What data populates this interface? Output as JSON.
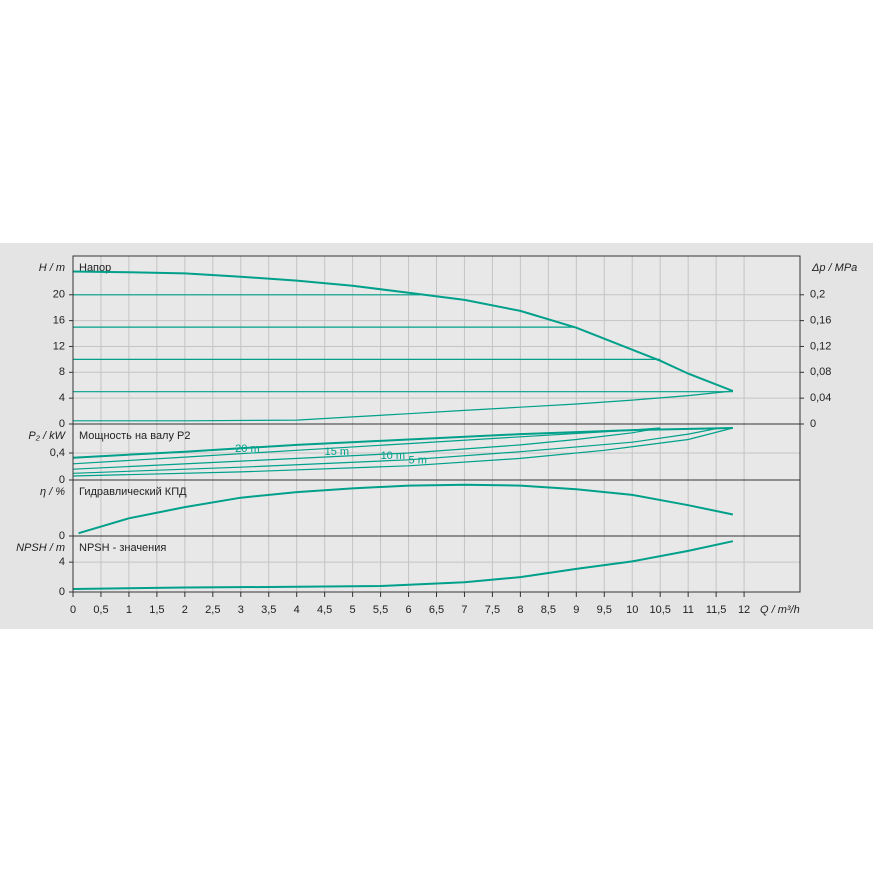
{
  "chart_data": [
    {
      "type": "line",
      "title": "Напор",
      "y_label": "H / m",
      "y2_label": "Δp / MPa",
      "ylim": [
        0,
        26
      ],
      "yticks": [
        0,
        4,
        8,
        12,
        16,
        20
      ],
      "y2lim": [
        0,
        0.26
      ],
      "y2ticks": [
        0,
        {
          "value": 0.04,
          "label": "0,04"
        },
        {
          "value": 0.08,
          "label": "0,08"
        },
        {
          "value": 0.12,
          "label": "0,12"
        },
        {
          "value": 0.16,
          "label": "0,16"
        },
        {
          "value": 0.2,
          "label": "0,2"
        }
      ],
      "grid": true,
      "series": [
        {
          "color": "#00a08a",
          "x": [
            0,
            1,
            2,
            3,
            4,
            5,
            6,
            7,
            8,
            9,
            10,
            10.5,
            11,
            11.8
          ],
          "values": [
            23.6,
            23.5,
            23.3,
            22.8,
            22.2,
            21.4,
            20.3,
            19.2,
            17.5,
            14.9,
            11.5,
            9.8,
            7.8,
            5.1
          ]
        },
        {
          "color": "#00a08a",
          "x": [
            0,
            6.2
          ],
          "values": [
            20,
            20
          ]
        },
        {
          "color": "#00a08a",
          "x": [
            0,
            9
          ],
          "values": [
            15,
            15
          ]
        },
        {
          "color": "#00a08a",
          "x": [
            0,
            10.5
          ],
          "values": [
            10,
            10
          ]
        },
        {
          "color": "#00a08a",
          "x": [
            0,
            11.8
          ],
          "values": [
            5,
            5
          ]
        },
        {
          "color": "#00a08a",
          "x": [
            0,
            2,
            4,
            5,
            6,
            7,
            8,
            9,
            10,
            11,
            11.8
          ],
          "values": [
            0.5,
            0.5,
            0.6,
            1.1,
            1.6,
            2.1,
            2.6,
            3.1,
            3.7,
            4.4,
            5.1
          ]
        }
      ]
    },
    {
      "type": "line",
      "title": "Мощность на валу P2",
      "y_label": "P₂ / kW",
      "ylim": [
        0,
        0.83
      ],
      "yticks": [
        0,
        {
          "value": 0.4,
          "label": "0,4"
        }
      ],
      "grid": true,
      "series": [
        {
          "color": "#00a08a",
          "x": [
            0,
            2,
            4,
            6,
            8,
            10,
            11.8
          ],
          "values": [
            0.33,
            0.42,
            0.52,
            0.6,
            0.68,
            0.74,
            0.77
          ]
        },
        {
          "name": "20 m",
          "color": "#00a08a",
          "x": [
            0,
            2,
            4,
            6,
            8,
            10,
            10.5
          ],
          "values": [
            0.24,
            0.34,
            0.44,
            0.54,
            0.64,
            0.74,
            0.77
          ]
        },
        {
          "name": "15 m",
          "color": "#00a08a",
          "x": [
            0,
            3,
            6,
            8,
            9,
            10,
            10.5
          ],
          "values": [
            0.16,
            0.28,
            0.4,
            0.52,
            0.6,
            0.7,
            0.77
          ]
        },
        {
          "name": "10 m",
          "color": "#00a08a",
          "x": [
            0,
            3,
            6,
            8,
            10,
            11,
            11.5
          ],
          "values": [
            0.1,
            0.19,
            0.3,
            0.42,
            0.56,
            0.68,
            0.76
          ]
        },
        {
          "name": "5 m",
          "color": "#00a08a",
          "x": [
            0,
            3,
            6,
            8,
            9.5,
            11,
            11.8
          ],
          "values": [
            0.06,
            0.12,
            0.21,
            0.32,
            0.44,
            0.6,
            0.77
          ]
        }
      ]
    },
    {
      "type": "line",
      "title": "Гидравлический КПД",
      "y_label": "η / %",
      "ylim": [
        0,
        60
      ],
      "yticks": [
        0
      ],
      "grid": true,
      "series": [
        {
          "color": "#00a08a",
          "x": [
            0.1,
            1,
            2,
            3,
            4,
            5,
            6,
            7,
            8,
            9,
            10,
            11,
            11.8
          ],
          "values": [
            3,
            19,
            31,
            41,
            47,
            51,
            54,
            55,
            54,
            50,
            44,
            33,
            23
          ]
        }
      ]
    },
    {
      "type": "line",
      "title": "NPSH - значения",
      "y_label": "NPSH / m",
      "ylim": [
        0,
        7.5
      ],
      "yticks": [
        0,
        4
      ],
      "grid": true,
      "x_label": "Q / m³/h",
      "xlim": [
        0,
        13
      ],
      "xticks": [
        0,
        {
          "value": 0.5,
          "label": "0,5"
        },
        1,
        {
          "value": 1.5,
          "label": "1,5"
        },
        2,
        {
          "value": 2.5,
          "label": "2,5"
        },
        3,
        {
          "value": 3.5,
          "label": "3,5"
        },
        4,
        {
          "value": 4.5,
          "label": "4,5"
        },
        5,
        {
          "value": 5.5,
          "label": "5,5"
        },
        6,
        {
          "value": 6.5,
          "label": "6,5"
        },
        7,
        {
          "value": 7.5,
          "label": "7,5"
        },
        8,
        {
          "value": 8.5,
          "label": "8,5"
        },
        9,
        {
          "value": 9.5,
          "label": "9,5"
        },
        10,
        {
          "value": 10.5,
          "label": "10,5"
        },
        11,
        {
          "value": 11.5,
          "label": "11,5"
        },
        12
      ],
      "series": [
        {
          "color": "#00a08a",
          "x": [
            0,
            2,
            4,
            5.5,
            7,
            8,
            9,
            10,
            11,
            11.8
          ],
          "values": [
            0.4,
            0.6,
            0.7,
            0.8,
            1.3,
            2.0,
            3.1,
            4.1,
            5.5,
            6.8
          ]
        }
      ]
    }
  ]
}
